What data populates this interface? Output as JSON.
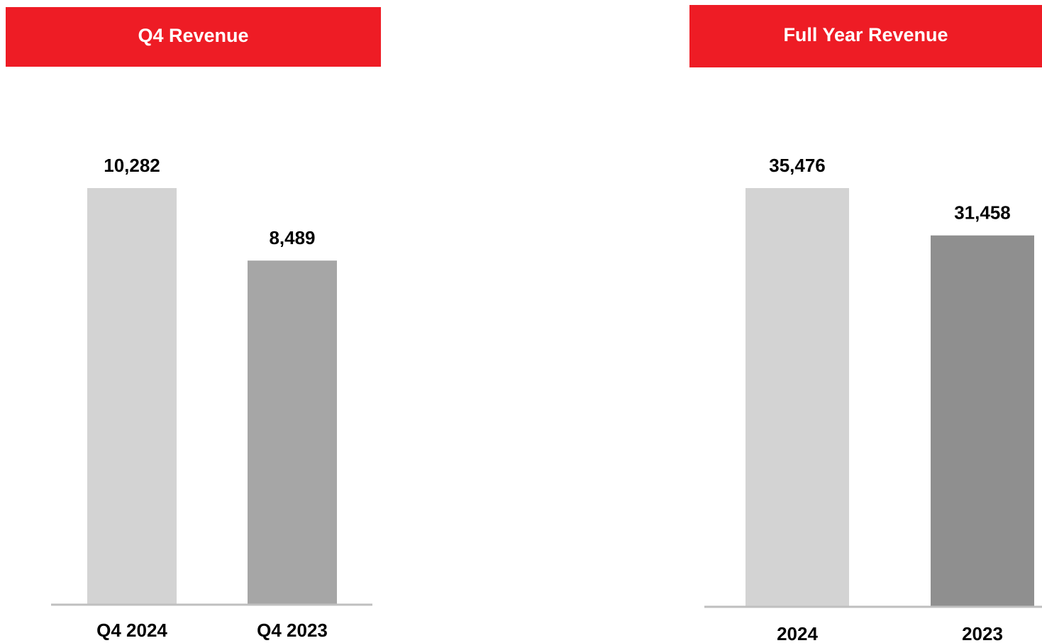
{
  "chart_data": [
    {
      "type": "bar",
      "title": "Q4 Revenue",
      "categories": [
        "Q4 2024",
        "Q4 2023"
      ],
      "values": [
        10282,
        8489
      ],
      "value_labels": [
        "10,282",
        "8,489"
      ],
      "colors": [
        "#d3d3d3",
        "#a6a6a6"
      ]
    },
    {
      "type": "bar",
      "title": "Full Year Revenue",
      "categories": [
        "2024",
        "2023"
      ],
      "values": [
        35476,
        31458
      ],
      "value_labels": [
        "35,476",
        "31,458"
      ],
      "colors": [
        "#d3d3d3",
        "#8f8f8f"
      ]
    }
  ]
}
